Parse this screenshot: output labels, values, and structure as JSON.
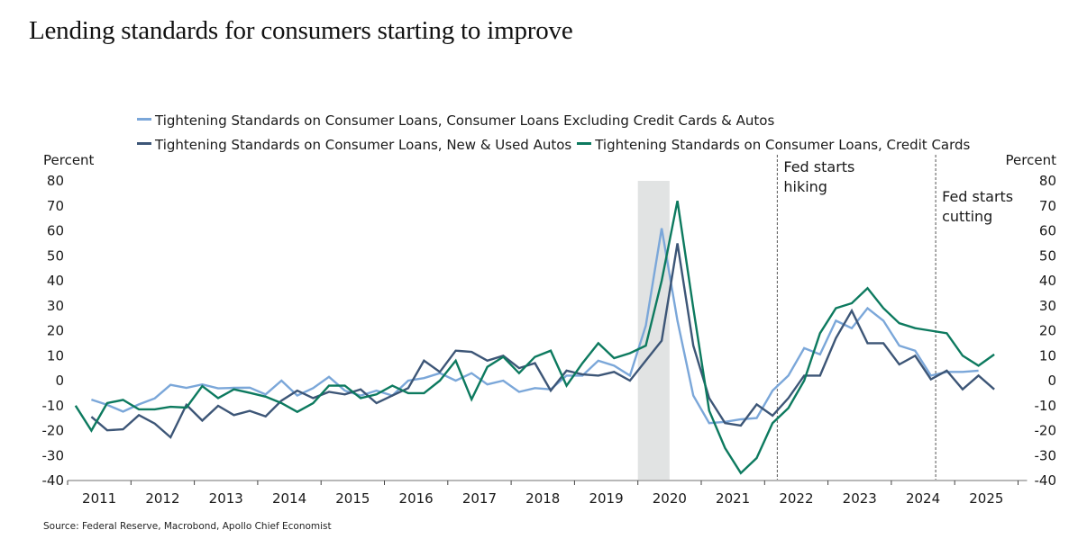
{
  "chart_data": {
    "type": "line",
    "title": "Lending standards for consumers starting to improve",
    "ylabel_left": "Percent",
    "ylabel_right": "Percent",
    "xlabel": "",
    "ylim": [
      -40,
      80
    ],
    "yticks": [
      80,
      70,
      60,
      50,
      40,
      30,
      20,
      10,
      0,
      -10,
      -20,
      -30,
      -40
    ],
    "xlim": [
      2011,
      2026
    ],
    "xtick_labels": [
      "2011",
      "2012",
      "2013",
      "2014",
      "2015",
      "2016",
      "2017",
      "2018",
      "2019",
      "2020",
      "2021",
      "2022",
      "2023",
      "2024",
      "2025"
    ],
    "grid": false,
    "legend_position": "top",
    "frequency": "quarterly",
    "series": [
      {
        "name": "Tightening Standards on Consumer Loans, Consumer Loans Excluding Credit Cards & Autos",
        "color": "#7ba7d9",
        "start": "2011Q2",
        "values": [
          -7.6,
          -9.7,
          -12.4,
          -9.5,
          -7.1,
          -1.7,
          -2.9,
          -1.5,
          -3.1,
          -2.9,
          -2.8,
          -5.5,
          0,
          -6,
          -3,
          1.5,
          -4,
          -6,
          -4,
          -6,
          0,
          1,
          3,
          0,
          3,
          -1.5,
          0,
          -4.5,
          -3,
          -3.5,
          2,
          2,
          8,
          6,
          2,
          22,
          61,
          24,
          -6,
          -17,
          -16.5,
          -15.5,
          -15,
          -4,
          2,
          13,
          10.5,
          24,
          21,
          29,
          24,
          14,
          12,
          2,
          3.5,
          3.5,
          4
        ]
      },
      {
        "name": "Tightening Standards on Consumer Loans, New & Used Autos",
        "color": "#3d5677",
        "start": "2011Q2",
        "values": [
          -14.5,
          -19.9,
          -19.5,
          -13.8,
          -17.2,
          -22.7,
          -9.7,
          -16,
          -10.1,
          -13.8,
          -12.1,
          -14.3,
          -8,
          -4,
          -7,
          -4.5,
          -5.5,
          -3.5,
          -9,
          -6,
          -3,
          8,
          3.5,
          12,
          11.5,
          8,
          10,
          5,
          7,
          -4,
          4,
          2.5,
          2,
          3.5,
          0,
          8,
          16,
          55,
          14,
          -7,
          -17,
          -18,
          -9.5,
          -14,
          -7,
          2,
          2,
          17,
          28,
          15,
          15,
          6.5,
          10,
          0.5,
          4,
          -3.5,
          2,
          -3.5
        ]
      },
      {
        "name": "Tightening Standards on Consumer Loans, Credit Cards",
        "color": "#0d7a5f",
        "start": "2011Q1",
        "values": [
          -10,
          -20,
          -9,
          -7.7,
          -11.5,
          -11.5,
          -10.5,
          -10.8,
          -2.2,
          -7,
          -3.5,
          -4.9,
          -6.4,
          -9,
          -12.5,
          -9,
          -2,
          -2,
          -7,
          -5.5,
          -2,
          -5,
          -5,
          0,
          8,
          -7.5,
          5.5,
          9.5,
          3,
          9.5,
          12,
          -2,
          7,
          15,
          9,
          11,
          14,
          40,
          72,
          29,
          -12,
          -27,
          -37,
          -31,
          -17,
          -11,
          0,
          19,
          29,
          31,
          37,
          29,
          23,
          21,
          20,
          19,
          10,
          6,
          10.5
        ]
      }
    ],
    "shaded_regions": [
      {
        "label": "recession",
        "from": 2020.0,
        "to": 2020.5,
        "color": "#e1e3e3"
      }
    ],
    "vlines": [
      {
        "label_lines": [
          "Fed starts",
          "hiking"
        ],
        "x": 2022.2
      },
      {
        "label_lines": [
          "Fed starts",
          "cutting"
        ],
        "x": 2024.7
      }
    ]
  },
  "title": "Lending standards for consumers starting to improve",
  "legend": {
    "items": [
      {
        "label": "Tightening Standards on Consumer Loans, Consumer Loans Excluding Credit Cards & Autos",
        "color": "#7ba7d9"
      },
      {
        "label": "Tightening Standards on Consumer Loans, New & Used Autos",
        "color": "#3d5677"
      },
      {
        "label": "Tightening Standards on Consumer Loans, Credit Cards",
        "color": "#0d7a5f"
      }
    ]
  },
  "source": "Source: Federal Reserve, Macrobond, Apollo Chief Economist"
}
